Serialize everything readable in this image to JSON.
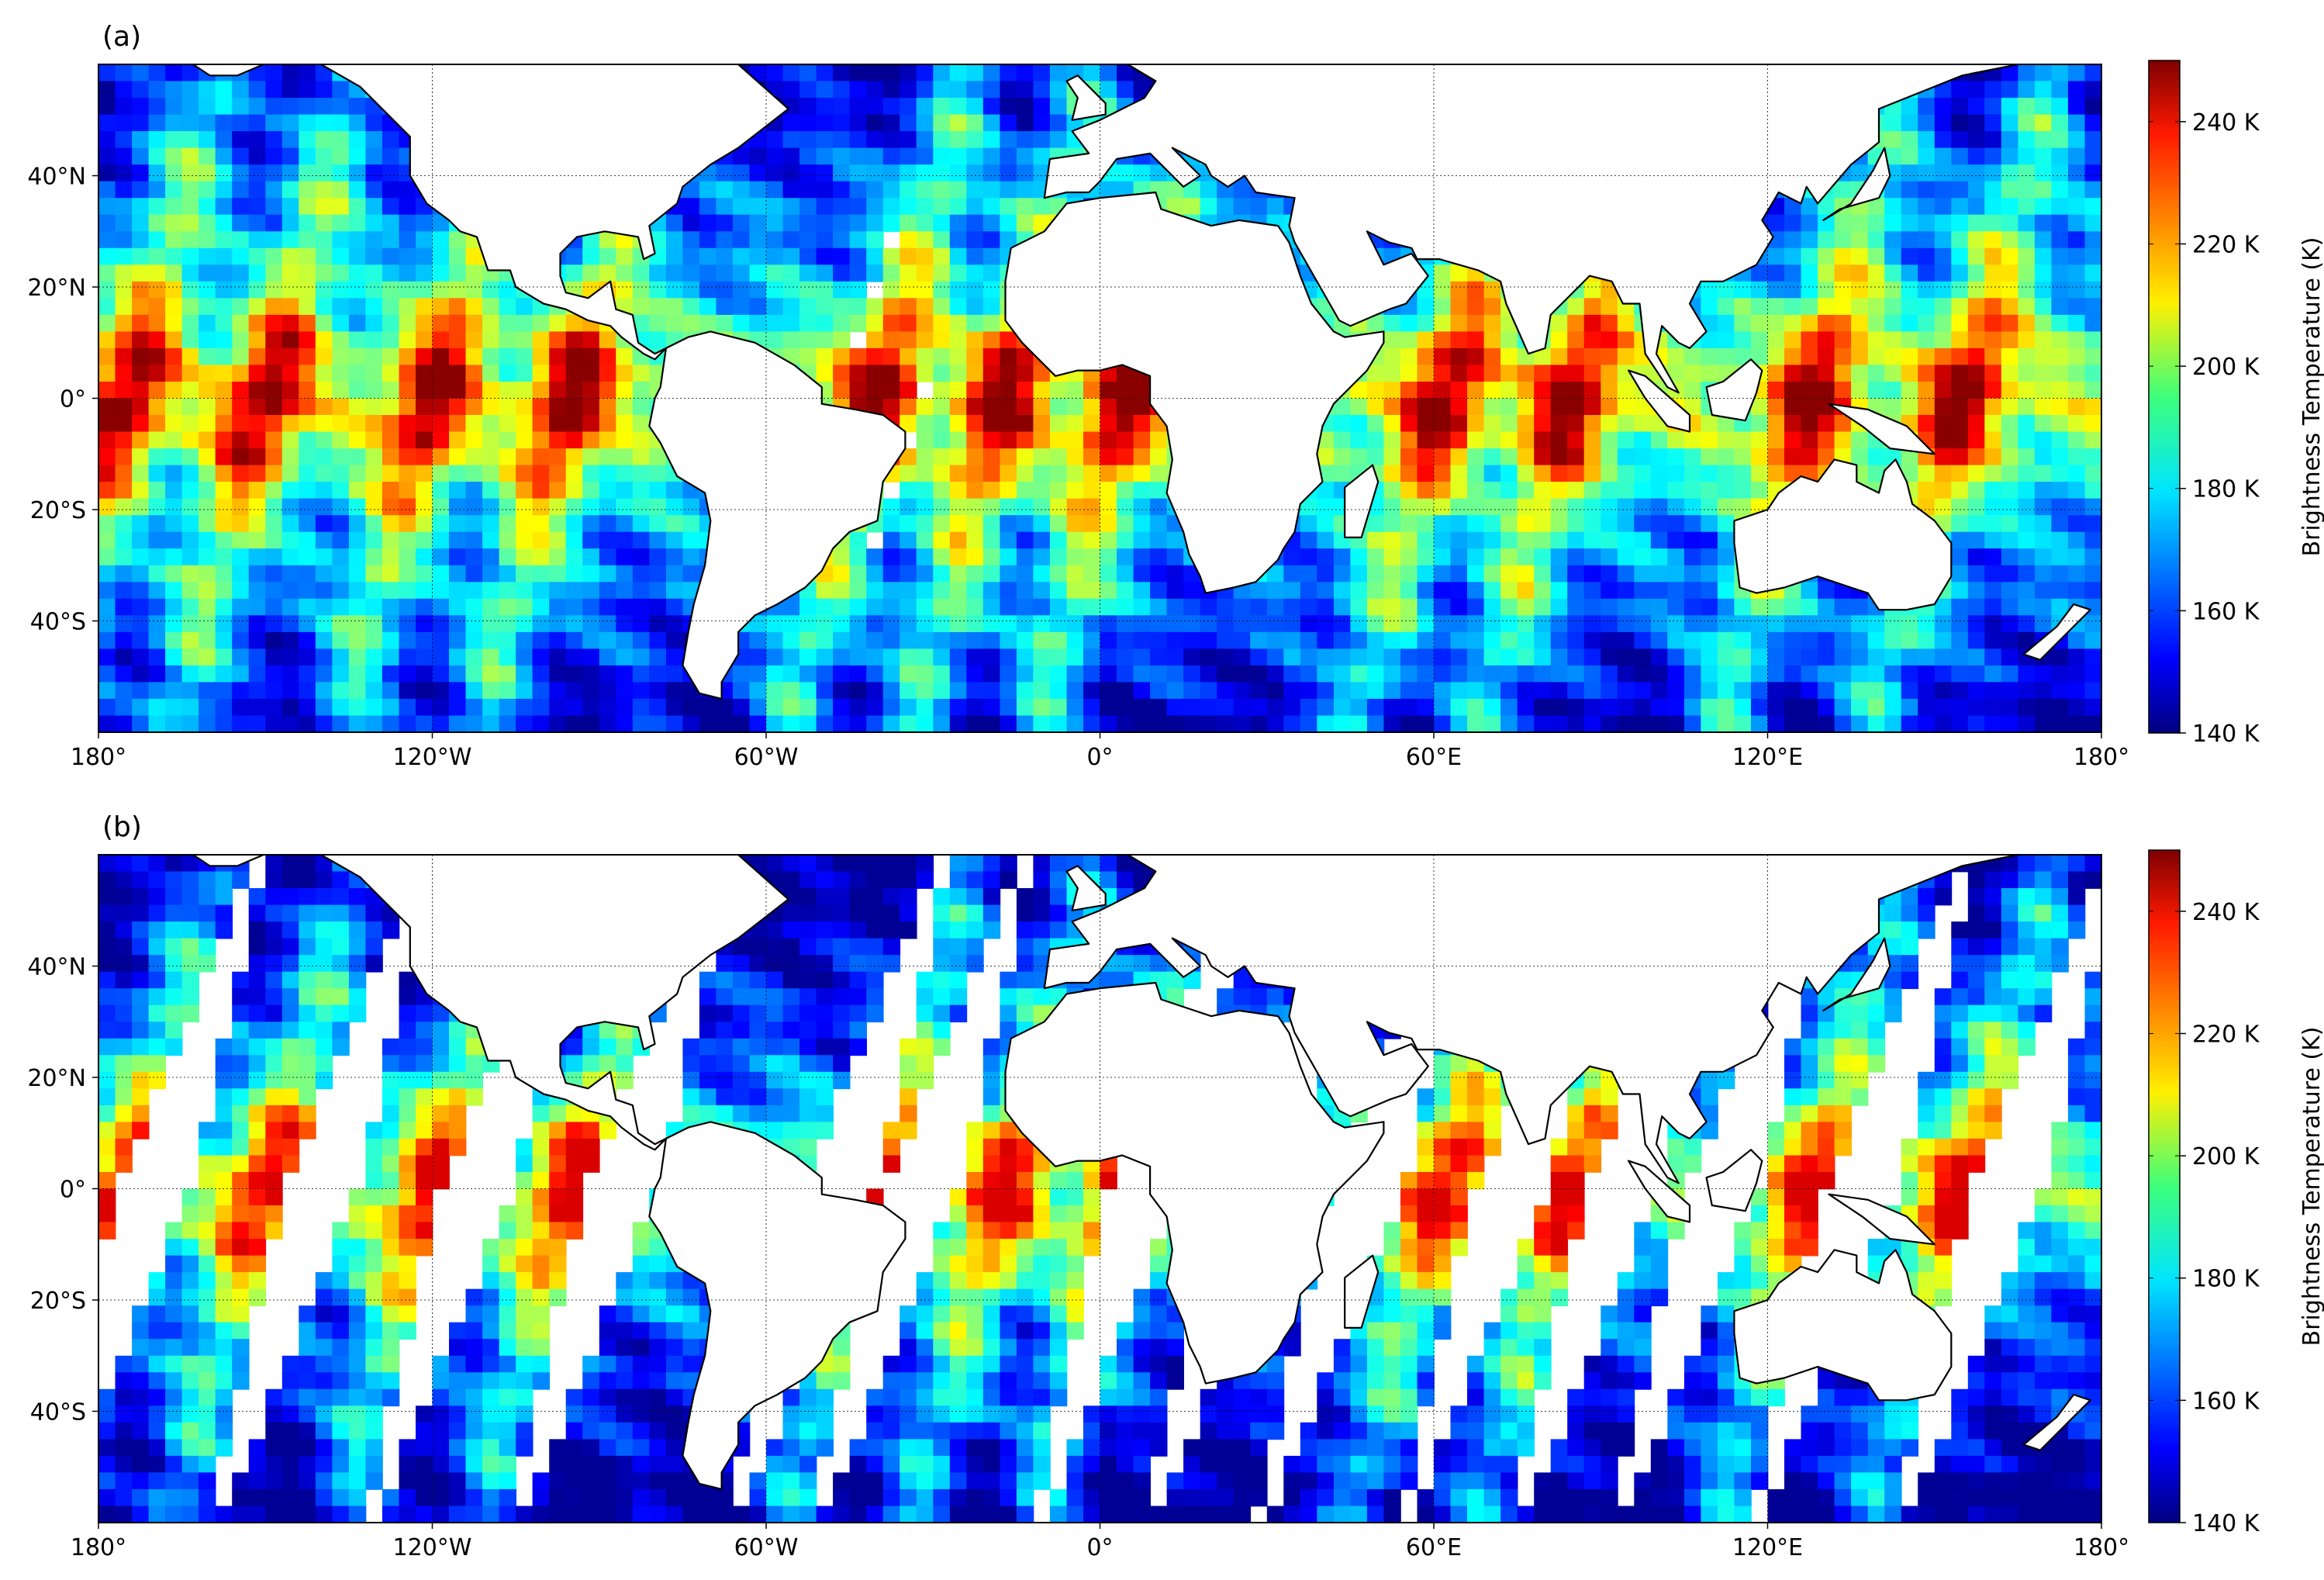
{
  "figure": {
    "colorbar": {
      "label": "Brightness Temperature (K)",
      "range": [
        140,
        250
      ],
      "ticks": [
        140,
        160,
        180,
        200,
        220,
        240
      ],
      "tick_labels": [
        "140 K",
        "160 K",
        "180 K",
        "200 K",
        "220 K",
        "240 K"
      ],
      "colormap": "jet"
    },
    "map": {
      "lon_range": [
        -180,
        180
      ],
      "lat_range": [
        -60,
        60
      ],
      "grid": true,
      "x_ticks": [
        -180,
        -120,
        -60,
        0,
        60,
        120,
        180
      ],
      "x_tick_labels": [
        "180°",
        "120°W",
        "60°W",
        "0°",
        "60°E",
        "120°E",
        "180°"
      ],
      "y_ticks": [
        -40,
        -20,
        0,
        20,
        40
      ],
      "y_tick_labels": [
        "40°S",
        "20°S",
        "0°",
        "20°N",
        "40°N"
      ],
      "land_color": "#ffffff",
      "coastline_color": "#000000"
    },
    "panels": [
      {
        "label": "(a)",
        "coverage": "full",
        "swath_gap_fraction": 0.04
      },
      {
        "label": "(b)",
        "coverage": "partial",
        "swath_gap_fraction": 0.42
      }
    ]
  }
}
